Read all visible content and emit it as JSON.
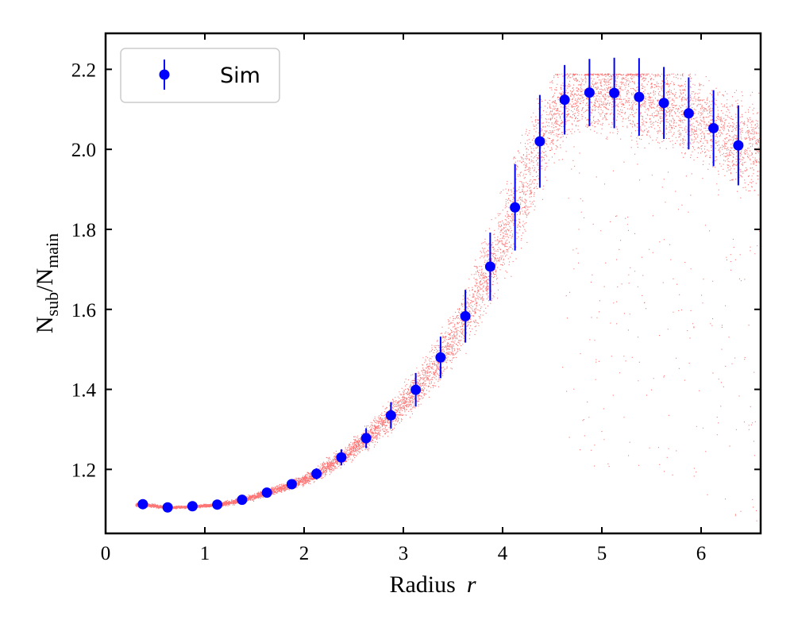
{
  "chart_data": {
    "type": "scatter",
    "xlabel": "Radius",
    "xlabel_var": "r",
    "ylabel_base1": "N",
    "ylabel_sub1": "sub",
    "ylabel_sep": "/",
    "ylabel_base2": "N",
    "ylabel_sub2": "main",
    "xlim": [
      0,
      6.6
    ],
    "ylim": [
      1.04,
      2.29
    ],
    "xticks": [
      0,
      1,
      2,
      3,
      4,
      5,
      6
    ],
    "xtick_labels": [
      "0",
      "1",
      "2",
      "3",
      "4",
      "5",
      "6"
    ],
    "yticks": [
      1.2,
      1.4,
      1.6,
      1.8,
      2.0,
      2.2
    ],
    "ytick_labels": [
      "1.2",
      "1.4",
      "1.6",
      "1.8",
      "2.0",
      "2.2"
    ],
    "grid": false,
    "legend": {
      "position": "top-left",
      "label": "Sim"
    },
    "series": [
      {
        "name": "Sim",
        "kind": "errorbar",
        "color": "#0000ff",
        "x": [
          0.375,
          0.625,
          0.875,
          1.125,
          1.375,
          1.625,
          1.875,
          2.125,
          2.375,
          2.625,
          2.875,
          3.125,
          3.375,
          3.625,
          3.875,
          4.125,
          4.375,
          4.625,
          4.875,
          5.125,
          5.375,
          5.625,
          5.875,
          6.125,
          6.375
        ],
        "y": [
          1.113,
          1.105,
          1.108,
          1.112,
          1.124,
          1.142,
          1.163,
          1.189,
          1.23,
          1.278,
          1.335,
          1.399,
          1.48,
          1.583,
          1.707,
          1.855,
          2.02,
          2.124,
          2.142,
          2.141,
          2.131,
          2.116,
          2.09,
          2.053,
          2.01
        ],
        "yerr": [
          0.004,
          0.003,
          0.003,
          0.004,
          0.006,
          0.008,
          0.01,
          0.014,
          0.02,
          0.025,
          0.033,
          0.042,
          0.052,
          0.066,
          0.085,
          0.108,
          0.116,
          0.087,
          0.084,
          0.088,
          0.097,
          0.09,
          0.09,
          0.095,
          0.1
        ]
      },
      {
        "name": "scatter",
        "kind": "points",
        "color": "#ff0000",
        "x_range": [
          0.3,
          6.6
        ],
        "y_cap": 2.19
      }
    ]
  }
}
